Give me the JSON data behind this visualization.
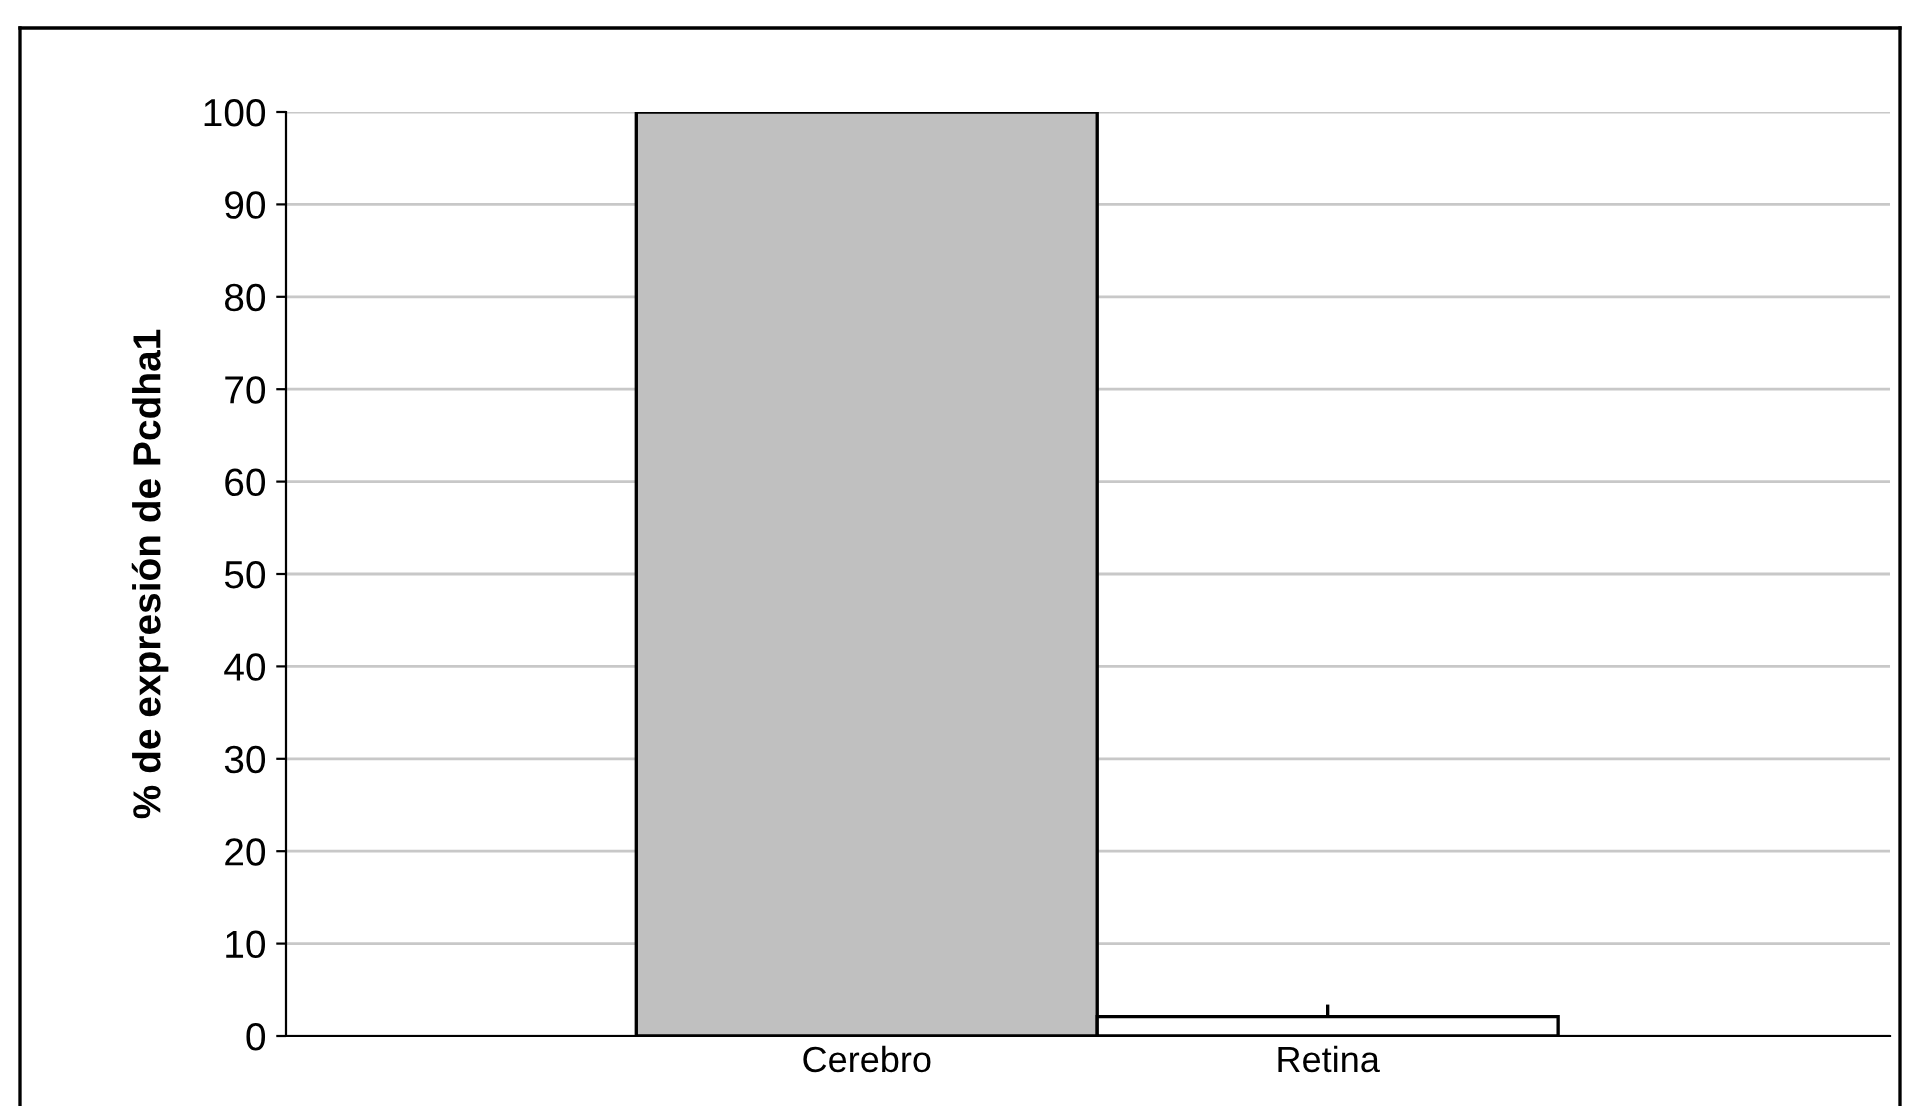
{
  "chart_data": {
    "type": "bar",
    "ylabel": "% de expresión de Pcdha1",
    "categories": [
      "Cerebro",
      "Retina"
    ],
    "series": [
      {
        "color": "#c0c0c0",
        "colors": [
          null,
          "#ffffff"
        ],
        "values": [
          100,
          2.1
        ],
        "errors": [
          null,
          [
            2.1,
            3.4
          ]
        ]
      }
    ],
    "ylim": [
      0,
      100
    ],
    "yticks": [
      0,
      10,
      20,
      30,
      40,
      50,
      60,
      70,
      80,
      90,
      100
    ],
    "grid": "y",
    "legend": false
  }
}
